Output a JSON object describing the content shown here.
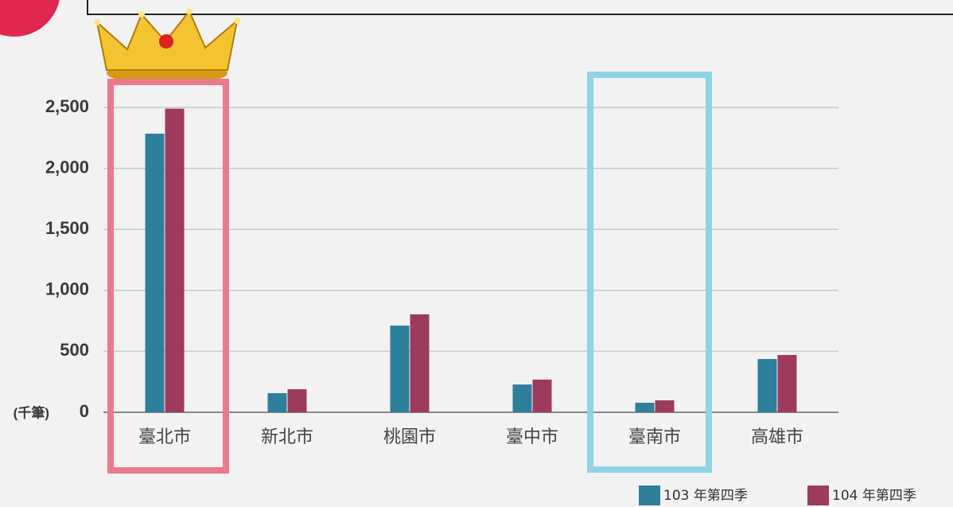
{
  "chart_data": {
    "type": "bar",
    "categories": [
      "臺北市",
      "新北市",
      "桃園市",
      "臺中市",
      "臺南市",
      "高雄市"
    ],
    "series": [
      {
        "name": "103 年第四季",
        "color": "#2e7f9c",
        "values": [
          2285,
          157,
          711,
          228,
          78,
          437
        ]
      },
      {
        "name": "104 年第四季",
        "color": "#9e3a5e",
        "values": [
          2490,
          189,
          803,
          268,
          98,
          470
        ]
      }
    ],
    "y_unit": "(千筆)",
    "ylim": [
      0,
      2500
    ],
    "yticks": [
      0,
      {
        "value": 500,
        "label": "500"
      },
      {
        "value": 1000,
        "label": "1,000"
      },
      {
        "value": 1500,
        "label": "1,500"
      },
      {
        "value": 2000,
        "label": "2,000"
      },
      {
        "value": 2500,
        "label": "2,500"
      }
    ],
    "grid": true
  }
}
